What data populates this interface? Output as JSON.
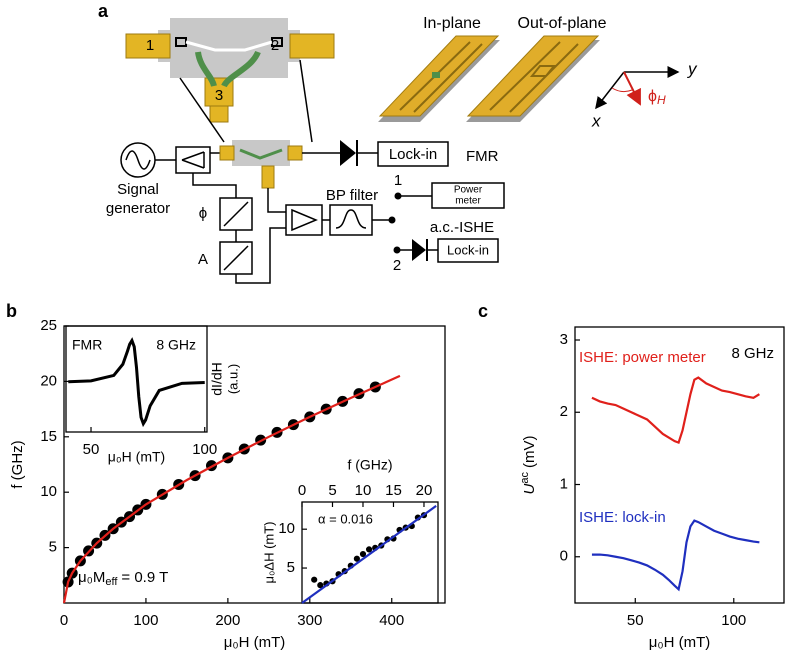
{
  "panel_a": {
    "label": "a",
    "connector_ports": [
      "1",
      "2",
      "3"
    ],
    "in_plane": "In-plane",
    "out_of_plane": "Out-of-plane",
    "axis_y": "y",
    "axis_x": "x",
    "angle": {
      "symbol": "ϕ",
      "sub": "H"
    },
    "signal_generator": [
      "Signal",
      "generator"
    ],
    "phase": "ϕ",
    "attenuator": "A",
    "lock_in_fmr": "Lock-in",
    "fmr": "FMR",
    "switch_1": "1",
    "power_meter": [
      "Power",
      "meter"
    ],
    "bp_filter": "BP filter",
    "ac_ishe": "a.c.-ISHE",
    "switch_2": "2",
    "lock_in_ishe": "Lock-in"
  },
  "chart_data": [
    {
      "type": "scatter",
      "panel": "b",
      "xlabel": "μ₀H (mT)",
      "ylabel": "f (GHz)",
      "xlim": [
        0,
        465
      ],
      "ylim": [
        0,
        25
      ],
      "xticks": [
        0,
        100,
        200,
        300,
        400
      ],
      "yticks": [
        5,
        10,
        15,
        20,
        25
      ],
      "annotation": {
        "main": "μ₀M",
        "sub": "eff",
        "rest": "= 0.9 T"
      },
      "series": [
        {
          "mode": "markers",
          "color": "#000000",
          "x": [
            5,
            10,
            20,
            30,
            40,
            50,
            60,
            70,
            80,
            90,
            100,
            120,
            140,
            160,
            180,
            200,
            220,
            240,
            260,
            280,
            300,
            320,
            340,
            360,
            380
          ],
          "values": [
            1.9,
            2.7,
            3.8,
            4.7,
            5.4,
            6.1,
            6.7,
            7.3,
            7.8,
            8.4,
            8.9,
            9.8,
            10.7,
            11.5,
            12.4,
            13.1,
            13.9,
            14.7,
            15.4,
            16.1,
            16.8,
            17.5,
            18.2,
            18.9,
            19.5
          ]
        },
        {
          "mode": "line",
          "color": "#e0201b",
          "x": [
            0,
            5,
            10,
            20,
            40,
            60,
            80,
            100,
            150,
            200,
            250,
            300,
            350,
            410
          ],
          "values": [
            0,
            1.9,
            2.7,
            3.8,
            5.4,
            6.7,
            7.8,
            8.9,
            11.1,
            13.1,
            15.0,
            16.8,
            18.5,
            20.5
          ]
        }
      ]
    },
    {
      "type": "line",
      "xlabel": "μ₀H (mT)",
      "ylabel": [
        "dI/dH",
        "(a.u.)"
      ],
      "xlim": [
        39,
        101
      ],
      "ylim": [
        -1.2,
        1.35
      ],
      "xticks": [
        50,
        100
      ],
      "annotations": [
        "FMR",
        "8 GHz"
      ],
      "x": [
        40,
        50,
        60,
        64,
        66,
        67,
        68,
        69,
        70,
        70.5,
        71,
        72,
        73,
        74,
        76,
        80,
        90,
        100
      ],
      "series": [
        {
          "color": "#000000",
          "values": [
            0.01,
            0.03,
            0.16,
            0.43,
            0.74,
            0.91,
            1.0,
            0.85,
            0.35,
            0,
            -0.35,
            -0.85,
            -1.0,
            -0.91,
            -0.57,
            -0.2,
            -0.03,
            -0.01
          ]
        }
      ]
    },
    {
      "type": "scatter",
      "xlabel": "f (GHz)",
      "ylabel": "μ₀ΔH (mT)",
      "xlim": [
        0,
        22.3
      ],
      "ylim": [
        0.5,
        13.5
      ],
      "xticks": [
        0,
        5,
        10,
        15,
        20
      ],
      "yticks": [
        5,
        10
      ],
      "annotation": "α = 0.016",
      "series": [
        {
          "mode": "markers",
          "color": "#000000",
          "x": [
            2,
            3,
            4,
            5,
            6,
            7,
            8,
            9,
            10,
            11,
            12,
            13,
            14,
            15,
            16,
            17,
            18,
            19,
            20
          ],
          "values": [
            3.5,
            2.8,
            3.0,
            3.3,
            4.2,
            4.6,
            5.3,
            6.2,
            6.8,
            7.4,
            7.6,
            7.9,
            8.7,
            8.8,
            9.9,
            10.2,
            10.4,
            11.5,
            11.8
          ]
        },
        {
          "mode": "line",
          "color": "#1f2fbf",
          "x": [
            0,
            22
          ],
          "values": [
            0.5,
            13.0
          ]
        }
      ]
    },
    {
      "type": "line",
      "panel": "c",
      "xlabel": "μ₀H (mT)",
      "ylabel": {
        "main": "U",
        "sup": "ac",
        "unit": "(mV)"
      },
      "xlim": [
        19.4,
        125.5
      ],
      "ylim": [
        -0.64,
        3.18
      ],
      "xticks": [
        50,
        100
      ],
      "yticks": [
        0,
        1,
        2,
        3
      ],
      "annotation": "8 GHz",
      "x": [
        28,
        32,
        36,
        40,
        44,
        48,
        52,
        56,
        60,
        64,
        67,
        70,
        72,
        74,
        76,
        78,
        80,
        82,
        86,
        90,
        94,
        98,
        102,
        106,
        110,
        113
      ],
      "series": [
        {
          "name": "ISHE: power meter",
          "color": "#e0201b",
          "values": [
            2.2,
            2.15,
            2.12,
            2.1,
            2.05,
            2.0,
            1.95,
            1.9,
            1.8,
            1.7,
            1.65,
            1.6,
            1.58,
            1.75,
            2.0,
            2.25,
            2.45,
            2.48,
            2.4,
            2.35,
            2.3,
            2.28,
            2.25,
            2.22,
            2.2,
            2.25
          ]
        },
        {
          "name": "ISHE: lock-in",
          "color": "#1f2fbf",
          "values": [
            0.03,
            0.03,
            0.02,
            0.0,
            -0.02,
            -0.05,
            -0.08,
            -0.12,
            -0.18,
            -0.25,
            -0.32,
            -0.4,
            -0.45,
            -0.2,
            0.2,
            0.42,
            0.5,
            0.48,
            0.42,
            0.36,
            0.32,
            0.28,
            0.25,
            0.23,
            0.21,
            0.2
          ]
        }
      ]
    }
  ]
}
